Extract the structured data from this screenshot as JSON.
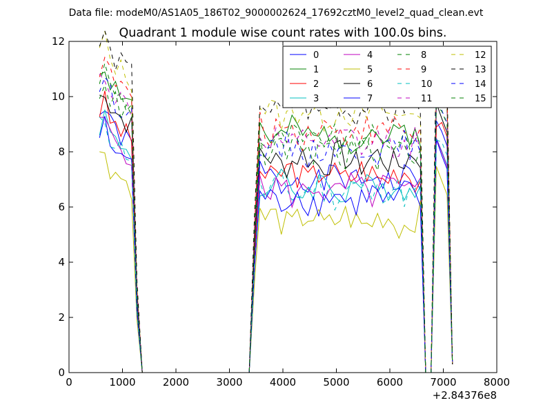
{
  "suptitle": "Data file: modeM0/AS1A05_186T02_9000002624_17692cztM0_level2_quad_clean.evt",
  "chart_data": {
    "type": "line",
    "title": "Quadrant 1 module wise count rates with 100.0s bins.",
    "xlabel": "",
    "ylabel": "",
    "xlim": [
      0,
      8000
    ],
    "ylim": [
      0,
      12
    ],
    "x_offset_label": "+2.84376e8",
    "x_ticks": [
      0,
      1000,
      2000,
      3000,
      4000,
      5000,
      6000,
      7000,
      8000
    ],
    "y_ticks": [
      0,
      2,
      4,
      6,
      8,
      10,
      12
    ],
    "legend_position": "top-right",
    "series": [
      {
        "name": "0",
        "color": "#0000ff",
        "dash": "solid",
        "base": 7.0,
        "seed": 1
      },
      {
        "name": "1",
        "color": "#008000",
        "dash": "solid",
        "base": 8.6,
        "seed": 2
      },
      {
        "name": "2",
        "color": "#ff0000",
        "dash": "solid",
        "base": 7.2,
        "seed": 3
      },
      {
        "name": "3",
        "color": "#00bfbf",
        "dash": "solid",
        "base": 6.7,
        "seed": 4
      },
      {
        "name": "4",
        "color": "#bf00bf",
        "dash": "solid",
        "base": 6.6,
        "seed": 5
      },
      {
        "name": "5",
        "color": "#bfbf00",
        "dash": "solid",
        "base": 5.5,
        "seed": 6
      },
      {
        "name": "6",
        "color": "#000000",
        "dash": "solid",
        "base": 7.7,
        "seed": 7
      },
      {
        "name": "7",
        "color": "#0000ff",
        "dash": "solid",
        "base": 6.3,
        "seed": 8
      },
      {
        "name": "8",
        "color": "#008000",
        "dash": "dashed",
        "base": 8.4,
        "seed": 9
      },
      {
        "name": "9",
        "color": "#ff0000",
        "dash": "dashed",
        "base": 8.8,
        "seed": 10
      },
      {
        "name": "10",
        "color": "#00bfbf",
        "dash": "dashed",
        "base": 6.6,
        "seed": 11
      },
      {
        "name": "11",
        "color": "#bf00bf",
        "dash": "dashed",
        "base": 8.3,
        "seed": 12
      },
      {
        "name": "12",
        "color": "#bfbf00",
        "dash": "dashed",
        "base": 9.4,
        "seed": 13
      },
      {
        "name": "13",
        "color": "#000000",
        "dash": "dashed",
        "base": 9.6,
        "seed": 14
      },
      {
        "name": "14",
        "color": "#0000ff",
        "dash": "dashed",
        "base": 8.1,
        "seed": 15
      },
      {
        "name": "15",
        "color": "#008000",
        "dash": "dashed",
        "base": 8.0,
        "seed": 16
      }
    ]
  }
}
